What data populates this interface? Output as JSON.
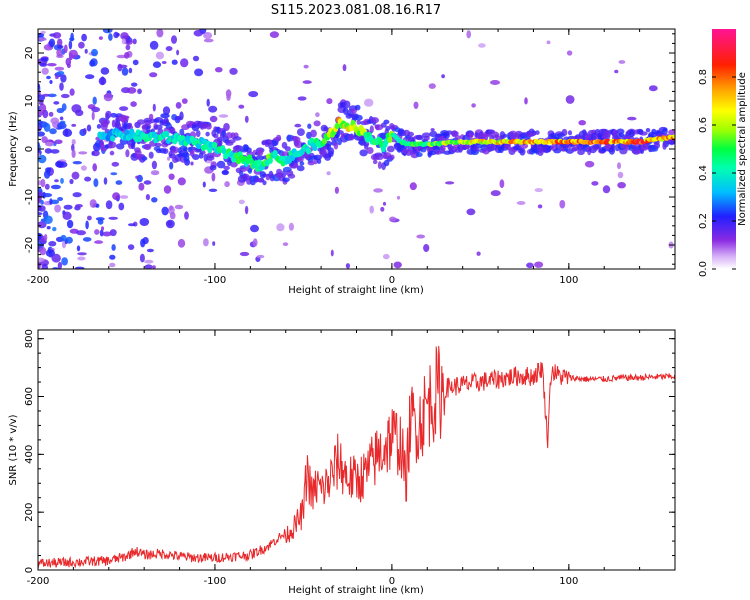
{
  "title": "S115.2023.081.08.16.R17",
  "colors": {
    "snr_line": "#e8282a",
    "ridge_high": "#e8282a",
    "ridge_mid": "#2ff03a",
    "background_scatter": "#7a2cf0"
  },
  "chart_data": [
    {
      "type": "heatmap",
      "xlabel": "Height of straight line (km)",
      "ylabel": "Frequency (Hz)",
      "xlim": [
        -200,
        160
      ],
      "ylim": [
        -25,
        25
      ],
      "x_ticks": [
        -200,
        -100,
        0,
        100
      ],
      "y_ticks": [
        -20,
        -10,
        0,
        10,
        20
      ],
      "colorbar": {
        "label": "Normalized spectral amplitude",
        "range": [
          0,
          1
        ],
        "ticks": [
          "0.0",
          "0.2",
          "0.4",
          "0.6",
          "0.8"
        ],
        "colormap": [
          "#ffffff",
          "#8a2be2",
          "#0000ff",
          "#00bfff",
          "#00ff7f",
          "#7fff00",
          "#ffff00",
          "#ff8c00",
          "#ff0000",
          "#ff1493"
        ]
      },
      "ridge": {
        "x": [
          -165,
          -150,
          -140,
          -130,
          -120,
          -110,
          -100,
          -90,
          -80,
          -75,
          -70,
          -65,
          -60,
          -55,
          -50,
          -45,
          -40,
          -35,
          -30,
          -25,
          -20,
          -15,
          -10,
          -5,
          0,
          5,
          10,
          20,
          40,
          60,
          80,
          100,
          120,
          140,
          160
        ],
        "y": [
          3,
          3,
          2.5,
          2.5,
          2,
          1.5,
          0,
          -1.5,
          -2.5,
          -3.5,
          -2,
          -1.5,
          -2.5,
          -1,
          -0.5,
          1,
          1,
          3,
          5.5,
          5,
          4.5,
          3,
          2,
          0.5,
          3,
          1.5,
          1,
          1,
          1.5,
          1.5,
          1.5,
          1.5,
          1.5,
          1.5,
          2.5
        ],
        "amplitude": [
          0.35,
          0.4,
          0.45,
          0.45,
          0.45,
          0.45,
          0.45,
          0.5,
          0.5,
          0.5,
          0.55,
          0.5,
          0.5,
          0.45,
          0.45,
          0.45,
          0.5,
          0.6,
          0.75,
          0.7,
          0.65,
          0.6,
          0.5,
          0.55,
          0.6,
          0.5,
          0.55,
          0.6,
          0.7,
          0.75,
          0.8,
          0.85,
          0.9,
          0.9,
          0.85
        ]
      }
    },
    {
      "type": "line",
      "xlabel": "Height of straight line (km)",
      "ylabel": "SNR (10 * v/v)",
      "xlim": [
        -200,
        160
      ],
      "ylim": [
        0,
        830
      ],
      "x_ticks": [
        -200,
        -100,
        0,
        100
      ],
      "y_ticks": [
        0,
        200,
        400,
        600,
        800
      ],
      "series": [
        {
          "x": [
            -200,
            -180,
            -160,
            -150,
            -145,
            -140,
            -130,
            -120,
            -110,
            -100,
            -90,
            -80,
            -70,
            -65,
            -60,
            -55,
            -50,
            -48,
            -45,
            -42,
            -40,
            -35,
            -30,
            -28,
            -25,
            -20,
            -15,
            -10,
            -5,
            0,
            5,
            8,
            10,
            12,
            15,
            20,
            25,
            30,
            40,
            50,
            60,
            70,
            80,
            85,
            88,
            90,
            95,
            100,
            110,
            120,
            130,
            140,
            150,
            160
          ],
          "y": [
            15,
            20,
            25,
            40,
            60,
            45,
            50,
            40,
            35,
            35,
            40,
            45,
            75,
            100,
            120,
            150,
            200,
            350,
            250,
            300,
            270,
            310,
            380,
            350,
            320,
            310,
            330,
            380,
            420,
            460,
            440,
            300,
            490,
            520,
            500,
            570,
            610,
            630,
            640,
            650,
            660,
            670,
            670,
            700,
            450,
            690,
            670,
            665,
            660,
            660,
            665,
            665,
            668,
            670
          ]
        }
      ]
    }
  ]
}
